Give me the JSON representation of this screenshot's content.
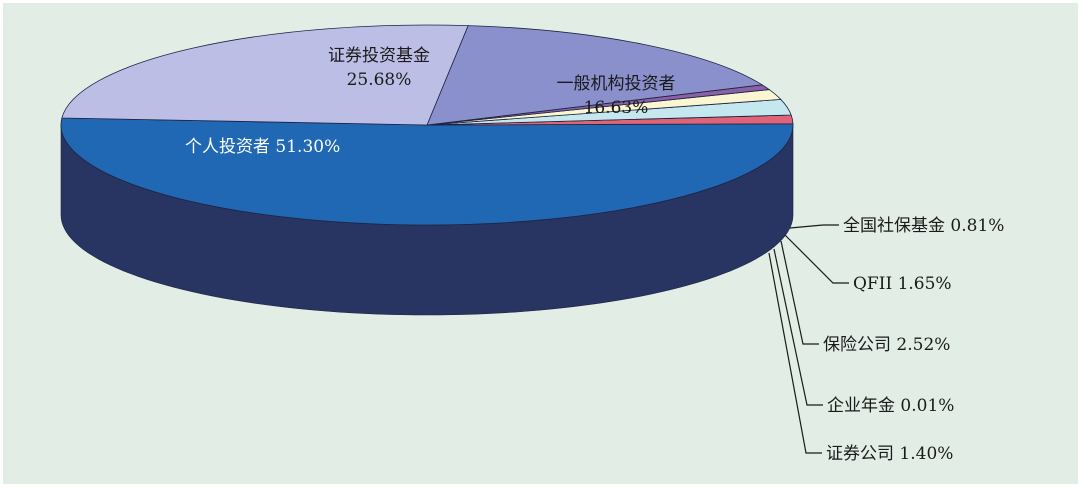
{
  "chart_data": {
    "type": "pie",
    "style": "3d-exploded-none",
    "title": "",
    "colors": {
      "background": "#e2ede6",
      "leader_line": "#1a1a1a",
      "inside_label_dark": "#1a1a1a",
      "inside_label_light": "#ffffff"
    },
    "slices": [
      {
        "name": "个人投资者",
        "value": 51.3,
        "label": "51.30%",
        "top_color": "#2068b4",
        "side_color": "#283462",
        "label_mode": "inline",
        "text_color": "#ffffff"
      },
      {
        "name": "证券公司",
        "value": 1.4,
        "label": "1.40%",
        "top_color": "#e06478",
        "side_color": "#7d2c38",
        "label_mode": "callout"
      },
      {
        "name": "企业年金",
        "value": 0.01,
        "label": "0.01%",
        "top_color": "#c8d860",
        "side_color": "#5e6a20",
        "label_mode": "callout"
      },
      {
        "name": "保险公司",
        "value": 2.52,
        "label": "2.52%",
        "top_color": "#c4e8ee",
        "side_color": "#6f8a90",
        "label_mode": "callout"
      },
      {
        "name": "QFII",
        "value": 1.65,
        "label": "1.65%",
        "top_color": "#fbf6d2",
        "side_color": "#8a8a60",
        "label_mode": "callout"
      },
      {
        "name": "全国社保基金",
        "value": 0.81,
        "label": "0.81%",
        "top_color": "#8a60a8",
        "side_color": "#42305a",
        "label_mode": "callout"
      },
      {
        "name": "一般机构投资者",
        "value": 16.63,
        "label": "16.63%",
        "top_color": "#8a90cc",
        "side_color": "#505480",
        "label_mode": "stacked",
        "text_color": "#1a1a1a"
      },
      {
        "name": "证券投资基金",
        "value": 25.68,
        "label": "25.68%",
        "top_color": "#bcbee6",
        "side_color": "#6e7098",
        "label_mode": "stacked",
        "text_color": "#1a1a1a"
      }
    ]
  }
}
